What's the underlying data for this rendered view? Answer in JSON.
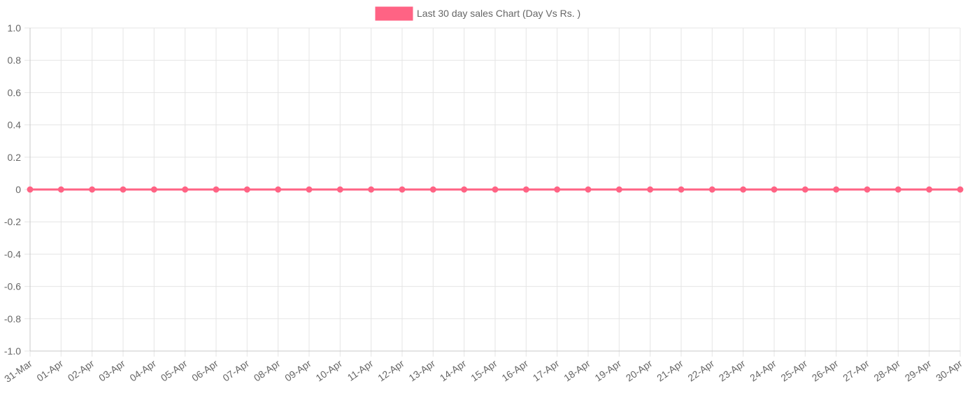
{
  "chart_data": {
    "type": "line",
    "categories": [
      "31-Mar",
      "01-Apr",
      "02-Apr",
      "03-Apr",
      "04-Apr",
      "05-Apr",
      "06-Apr",
      "07-Apr",
      "08-Apr",
      "09-Apr",
      "10-Apr",
      "11-Apr",
      "12-Apr",
      "13-Apr",
      "14-Apr",
      "15-Apr",
      "16-Apr",
      "17-Apr",
      "18-Apr",
      "19-Apr",
      "20-Apr",
      "21-Apr",
      "22-Apr",
      "23-Apr",
      "24-Apr",
      "25-Apr",
      "26-Apr",
      "27-Apr",
      "28-Apr",
      "29-Apr",
      "30-Apr"
    ],
    "series": [
      {
        "name": "Last 30 day sales Chart (Day Vs Rs. )",
        "color": "#ff6384",
        "values": [
          0,
          0,
          0,
          0,
          0,
          0,
          0,
          0,
          0,
          0,
          0,
          0,
          0,
          0,
          0,
          0,
          0,
          0,
          0,
          0,
          0,
          0,
          0,
          0,
          0,
          0,
          0,
          0,
          0,
          0,
          0
        ]
      }
    ],
    "yticks": [
      "1.0",
      "0.8",
      "0.6",
      "0.4",
      "0.2",
      "0",
      "-0.2",
      "-0.4",
      "-0.6",
      "-0.8",
      "-1.0"
    ],
    "ylim": [
      -1,
      1
    ],
    "grid": true,
    "legend": "top-center",
    "colors": {
      "grid": "#e5e5e5",
      "axis": "#c8c8c8",
      "text": "#666666"
    }
  }
}
